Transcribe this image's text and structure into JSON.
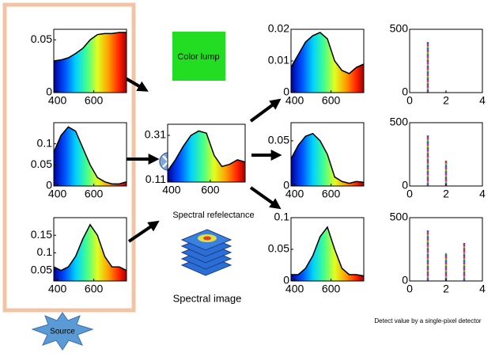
{
  "labels": {
    "color_lump": "Color lump",
    "reflectance": "Spectral refelectance",
    "spectral_image": "Spectral image",
    "detector": "Detect value by a single-pixel detector",
    "source": "Source"
  },
  "source_spectra": [
    {
      "x": [
        380,
        420,
        460,
        500,
        540,
        580,
        620,
        660,
        700,
        740,
        780
      ],
      "values": [
        0.03,
        0.031,
        0.033,
        0.037,
        0.042,
        0.05,
        0.055,
        0.056,
        0.056,
        0.057,
        0.057
      ],
      "xlim": [
        380,
        780
      ],
      "ylim": [
        0,
        0.06
      ],
      "xticks": [
        400,
        600
      ],
      "yticks": [
        0,
        0.05
      ]
    },
    {
      "x": [
        380,
        420,
        460,
        500,
        540,
        580,
        620,
        660,
        700,
        740,
        780
      ],
      "values": [
        0.08,
        0.12,
        0.14,
        0.13,
        0.09,
        0.05,
        0.02,
        0.01,
        0.005,
        0.005,
        0.01
      ],
      "xlim": [
        380,
        780
      ],
      "ylim": [
        0,
        0.15
      ],
      "xticks": [
        400,
        600
      ],
      "yticks": [
        0,
        0.05,
        0.1
      ]
    },
    {
      "x": [
        380,
        420,
        460,
        500,
        540,
        580,
        620,
        660,
        700,
        740,
        780
      ],
      "values": [
        0.06,
        0.05,
        0.06,
        0.09,
        0.14,
        0.18,
        0.15,
        0.09,
        0.06,
        0.06,
        0.05
      ],
      "xlim": [
        380,
        780
      ],
      "ylim": [
        0.02,
        0.2
      ],
      "xticks": [
        400,
        600
      ],
      "yticks": [
        0.05,
        0.1,
        0.15
      ]
    }
  ],
  "reflectance": {
    "x": [
      380,
      420,
      460,
      500,
      540,
      580,
      620,
      660,
      700,
      740,
      780
    ],
    "values": [
      0.15,
      0.2,
      0.26,
      0.31,
      0.33,
      0.32,
      0.22,
      0.17,
      0.18,
      0.2,
      0.19
    ],
    "xlim": [
      380,
      780
    ],
    "ylim": [
      0.1,
      0.36
    ],
    "xticks": [
      400,
      600
    ],
    "yticks": [
      0.11,
      0.31
    ]
  },
  "products": [
    {
      "x": [
        380,
        420,
        460,
        500,
        540,
        580,
        620,
        660,
        700,
        740,
        780
      ],
      "values": [
        0.008,
        0.012,
        0.016,
        0.018,
        0.019,
        0.017,
        0.01,
        0.007,
        0.006,
        0.008,
        0.009
      ],
      "xlim": [
        380,
        780
      ],
      "ylim": [
        0,
        0.02
      ],
      "xticks": [
        400,
        600
      ],
      "yticks": [
        0,
        0.01,
        0.02
      ]
    },
    {
      "x": [
        380,
        420,
        460,
        500,
        540,
        580,
        620,
        660,
        700,
        740,
        780
      ],
      "values": [
        0.03,
        0.045,
        0.055,
        0.058,
        0.05,
        0.035,
        0.01,
        0.005,
        0.003,
        0.005,
        0.004
      ],
      "xlim": [
        380,
        780
      ],
      "ylim": [
        0,
        0.07
      ],
      "xticks": [
        400,
        600
      ],
      "yticks": [
        0,
        0.05
      ]
    },
    {
      "x": [
        380,
        420,
        460,
        500,
        540,
        580,
        620,
        660,
        700,
        740,
        780
      ],
      "values": [
        0.01,
        0.01,
        0.02,
        0.04,
        0.07,
        0.085,
        0.05,
        0.02,
        0.01,
        0.01,
        0.008
      ],
      "xlim": [
        380,
        780
      ],
      "ylim": [
        0,
        0.1
      ],
      "xticks": [
        400,
        600
      ],
      "yticks": [
        0,
        0.05,
        0.1
      ]
    }
  ],
  "detections": [
    {
      "x": [
        1,
        2
      ],
      "values": [
        400,
        5
      ],
      "xlim": [
        0,
        4
      ],
      "ylim": [
        0,
        500
      ],
      "xticks": [
        0,
        2,
        4
      ],
      "yticks": [
        0,
        500
      ]
    },
    {
      "x": [
        1,
        2
      ],
      "values": [
        400,
        200
      ],
      "xlim": [
        0,
        4
      ],
      "ylim": [
        0,
        500
      ],
      "xticks": [
        0,
        2,
        4
      ],
      "yticks": [
        0,
        500
      ]
    },
    {
      "x": [
        1,
        2,
        3
      ],
      "values": [
        400,
        220,
        300
      ],
      "xlim": [
        0,
        4
      ],
      "ylim": [
        0,
        500
      ],
      "xticks": [
        0,
        2,
        4
      ],
      "yticks": [
        0,
        500
      ]
    }
  ]
}
